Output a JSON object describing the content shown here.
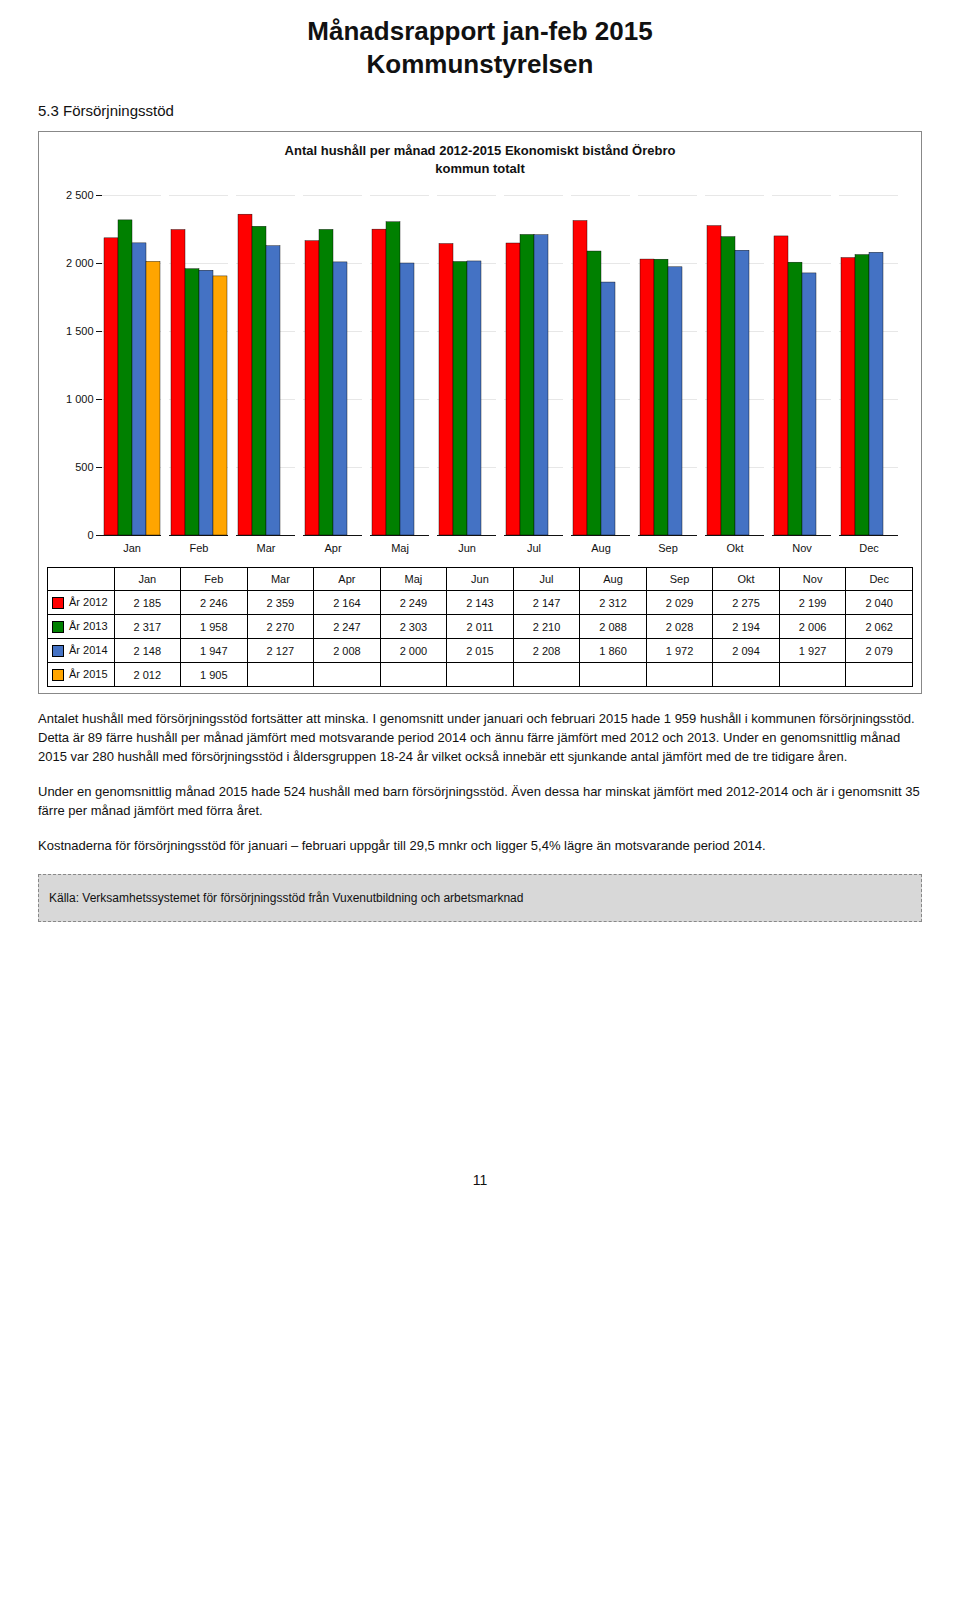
{
  "chart_data": {
    "type": "bar",
    "title": "Antal hushåll per månad 2012-2015 Ekonomiskt bistånd Örebro",
    "subtitle": "kommun totalt",
    "categories": [
      "Jan",
      "Feb",
      "Mar",
      "Apr",
      "Maj",
      "Jun",
      "Jul",
      "Aug",
      "Sep",
      "Okt",
      "Nov",
      "Dec"
    ],
    "series": [
      {
        "name": "År 2012",
        "color": "#FF0000",
        "values": [
          2185,
          2246,
          2359,
          2164,
          2249,
          2143,
          2147,
          2312,
          2029,
          2275,
          2199,
          2040
        ],
        "value_labels": [
          "2 185",
          "2 246",
          "2 359",
          "2 164",
          "2 249",
          "2 143",
          "2 147",
          "2 312",
          "2 029",
          "2 275",
          "2 199",
          "2 040"
        ]
      },
      {
        "name": "År 2013",
        "color": "#008000",
        "values": [
          2317,
          1958,
          2270,
          2247,
          2303,
          2011,
          2210,
          2088,
          2028,
          2194,
          2006,
          2062
        ],
        "value_labels": [
          "2 317",
          "1 958",
          "2 270",
          "2 247",
          "2 303",
          "2 011",
          "2 210",
          "2 088",
          "2 028",
          "2 194",
          "2 006",
          "2 062"
        ]
      },
      {
        "name": "År 2014",
        "color": "#4472C4",
        "values": [
          2148,
          1947,
          2127,
          2008,
          2000,
          2015,
          2208,
          1860,
          1972,
          2094,
          1927,
          2079
        ],
        "value_labels": [
          "2 148",
          "1 947",
          "2 127",
          "2 008",
          "2 000",
          "2 015",
          "2 208",
          "1 860",
          "1 972",
          "2 094",
          "1 927",
          "2 079"
        ]
      },
      {
        "name": "År 2015",
        "color": "#FFA500",
        "values": [
          2012,
          1905,
          null,
          null,
          null,
          null,
          null,
          null,
          null,
          null,
          null,
          null
        ],
        "value_labels": [
          "2 012",
          "1 905",
          null,
          null,
          null,
          null,
          null,
          null,
          null,
          null,
          null,
          null
        ]
      }
    ],
    "ylim": [
      0,
      2500
    ],
    "yticks": [
      0,
      500,
      {
        "value": 1000,
        "label": "1 000"
      },
      {
        "value": 1500,
        "label": "1 500"
      },
      {
        "value": 2000,
        "label": "2 000"
      },
      {
        "value": 2500,
        "label": "2 500"
      }
    ],
    "grid": true,
    "annotations": [
      "Månadsrapport jan-feb 2015",
      "Kommunstyrelsen",
      "5.3  Försörjningsstöd",
      "Antalet hushåll med försörjningsstöd fortsätter att minska. I genomsnitt under januari och februari 2015 hade 1 959 hushåll i kommunen försörjningsstöd. Detta är 89 färre hushåll per månad jämfört med motsvarande period 2014 och ännu färre jämfört med 2012 och 2013. Under en genomsnittlig månad 2015 var 280 hushåll med försörjningsstöd i åldersgruppen 18-24 år vilket också innebär ett sjunkande antal jämfört med de tre tidigare åren.",
      "Under en genomsnittlig månad 2015 hade 524 hushåll med barn försörjningsstöd. Även dessa har minskat jämfört med 2012-2014 och är i genomsnitt 35 färre per månad jämfört med förra året.",
      "Kostnaderna för försörjningsstöd för januari – februari uppgår till 29,5 mnkr och ligger 5,4% lägre än motsvarande period 2014.",
      "Källa: Verksamhetssystemet för försörjningsstöd från Vuxenutbildning och arbetsmarknad",
      "11"
    ]
  }
}
